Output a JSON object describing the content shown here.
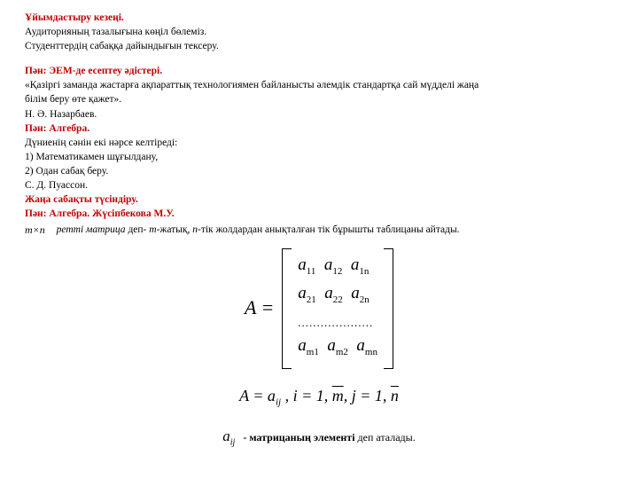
{
  "l1": "Ұйымдастыру кезеңі.",
  "l2": "Аудиторияның тазалығына көңіл бөлеміз.",
  "l3": "Студенттердің сабаққа дайындығын тексеру.",
  "l4": "Пән: ЭЕМ-де есептеу әдістері.",
  "l5": "«Қазіргі заманда жастарға ақпараттық технологиямен байланысты әлемдік стандартқа сай мүдделі жаңа",
  "l5b": "білім беру өте қажет».",
  "l6": "Н. Ә. Назарбаев.",
  "l7": "Пән: Алгебра.",
  "l8": "Дүниенің сәнін екі нәрсе келтіреді:",
  "l9": "1) Математикамен шұғылдану,",
  "l10": "2) Одан сабақ беру.",
  "l11": "С. Д. Пуассон.",
  "l12": "Жаңа сабақты түсіндіру.",
  "l13": "Пән: Алгебра. Жүсіпбекова М.У.",
  "mxn": "m×n",
  "def_a": "ретті матрица",
  "def_b": " деп- ",
  "def_m": "m",
  "def_c": "-жатық, ",
  "def_n": "n",
  "def_d": "-тік жолдардан анықталған тік бұрышты таблицаны айтады.",
  "Aeq": "A =",
  "matrix": {
    "r1": [
      "a",
      "11",
      "a",
      "12",
      "a",
      "1n"
    ],
    "r2": [
      "a",
      "21",
      "a",
      "22",
      "a",
      "2n"
    ],
    "dots": "....................",
    "r3": [
      "a",
      "m1",
      "a",
      "m2",
      "a",
      "mn"
    ]
  },
  "eq_before": "A = a",
  "eq_ij": "ij",
  "eq_mid": " ,   i = 1, ",
  "eq_m": "m",
  "eq_mid2": ",   j = 1, ",
  "eq_n": "n",
  "a_ij": "a",
  "a_ij_sub": "ij",
  "ft_a": "- матрицаның элементі",
  "ft_b": " деп аталады."
}
